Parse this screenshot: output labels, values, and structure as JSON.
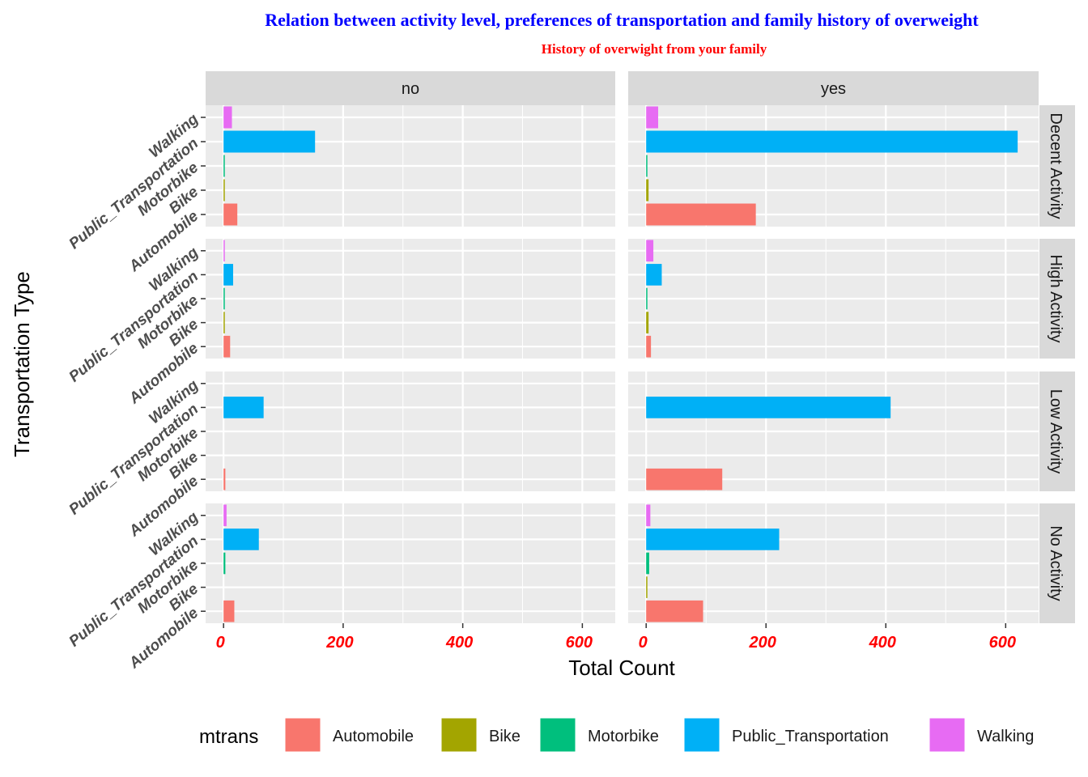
{
  "chart_data": {
    "type": "bar",
    "orientation": "horizontal",
    "title": "Relation between activity level, preferences of transportation and family history of overweight",
    "title_color": "#0000FF",
    "subtitle": "History of overwight from your family",
    "subtitle_color": "#FF0000",
    "xlabel": "Total Count",
    "ylabel": "Transportation Type",
    "xlim": [
      -30,
      655
    ],
    "x_ticks": [
      0,
      200,
      400,
      600
    ],
    "tick_label_color": "#FF0000",
    "grid": true,
    "categories": [
      "Automobile",
      "Bike",
      "Motorbike",
      "Public_Transportation",
      "Walking"
    ],
    "column_facets": [
      "no",
      "yes"
    ],
    "row_facets": [
      "Decent Activity",
      "High Activity",
      "Low Activity",
      "No Activity"
    ],
    "legend": {
      "title": "mtrans",
      "position": "bottom",
      "entries": [
        {
          "label": "Automobile",
          "color": "#F8766D"
        },
        {
          "label": "Bike",
          "color": "#A3A500"
        },
        {
          "label": "Motorbike",
          "color": "#00BF7D"
        },
        {
          "label": "Public_Transportation",
          "color": "#00B0F6"
        },
        {
          "label": "Walking",
          "color": "#E76BF3"
        }
      ]
    },
    "panels": [
      {
        "col": "no",
        "row": "Decent Activity",
        "values": {
          "Automobile": 23,
          "Bike": 2,
          "Motorbike": 2,
          "Public_Transportation": 153,
          "Walking": 14
        }
      },
      {
        "col": "yes",
        "row": "Decent Activity",
        "values": {
          "Automobile": 183,
          "Bike": 4,
          "Motorbike": 2,
          "Public_Transportation": 620,
          "Walking": 20
        }
      },
      {
        "col": "no",
        "row": "High Activity",
        "values": {
          "Automobile": 11,
          "Bike": 2,
          "Motorbike": 2,
          "Public_Transportation": 16,
          "Walking": 2
        }
      },
      {
        "col": "yes",
        "row": "High Activity",
        "values": {
          "Automobile": 8,
          "Bike": 4,
          "Motorbike": 2,
          "Public_Transportation": 26,
          "Walking": 12
        }
      },
      {
        "col": "no",
        "row": "Low Activity",
        "values": {
          "Automobile": 3,
          "Public_Transportation": 67
        }
      },
      {
        "col": "yes",
        "row": "Low Activity",
        "values": {
          "Automobile": 127,
          "Public_Transportation": 408
        }
      },
      {
        "col": "no",
        "row": "No Activity",
        "values": {
          "Automobile": 18,
          "Motorbike": 3,
          "Public_Transportation": 59,
          "Walking": 5
        }
      },
      {
        "col": "yes",
        "row": "No Activity",
        "values": {
          "Automobile": 95,
          "Bike": 2,
          "Motorbike": 5,
          "Public_Transportation": 222,
          "Walking": 7
        }
      }
    ]
  }
}
